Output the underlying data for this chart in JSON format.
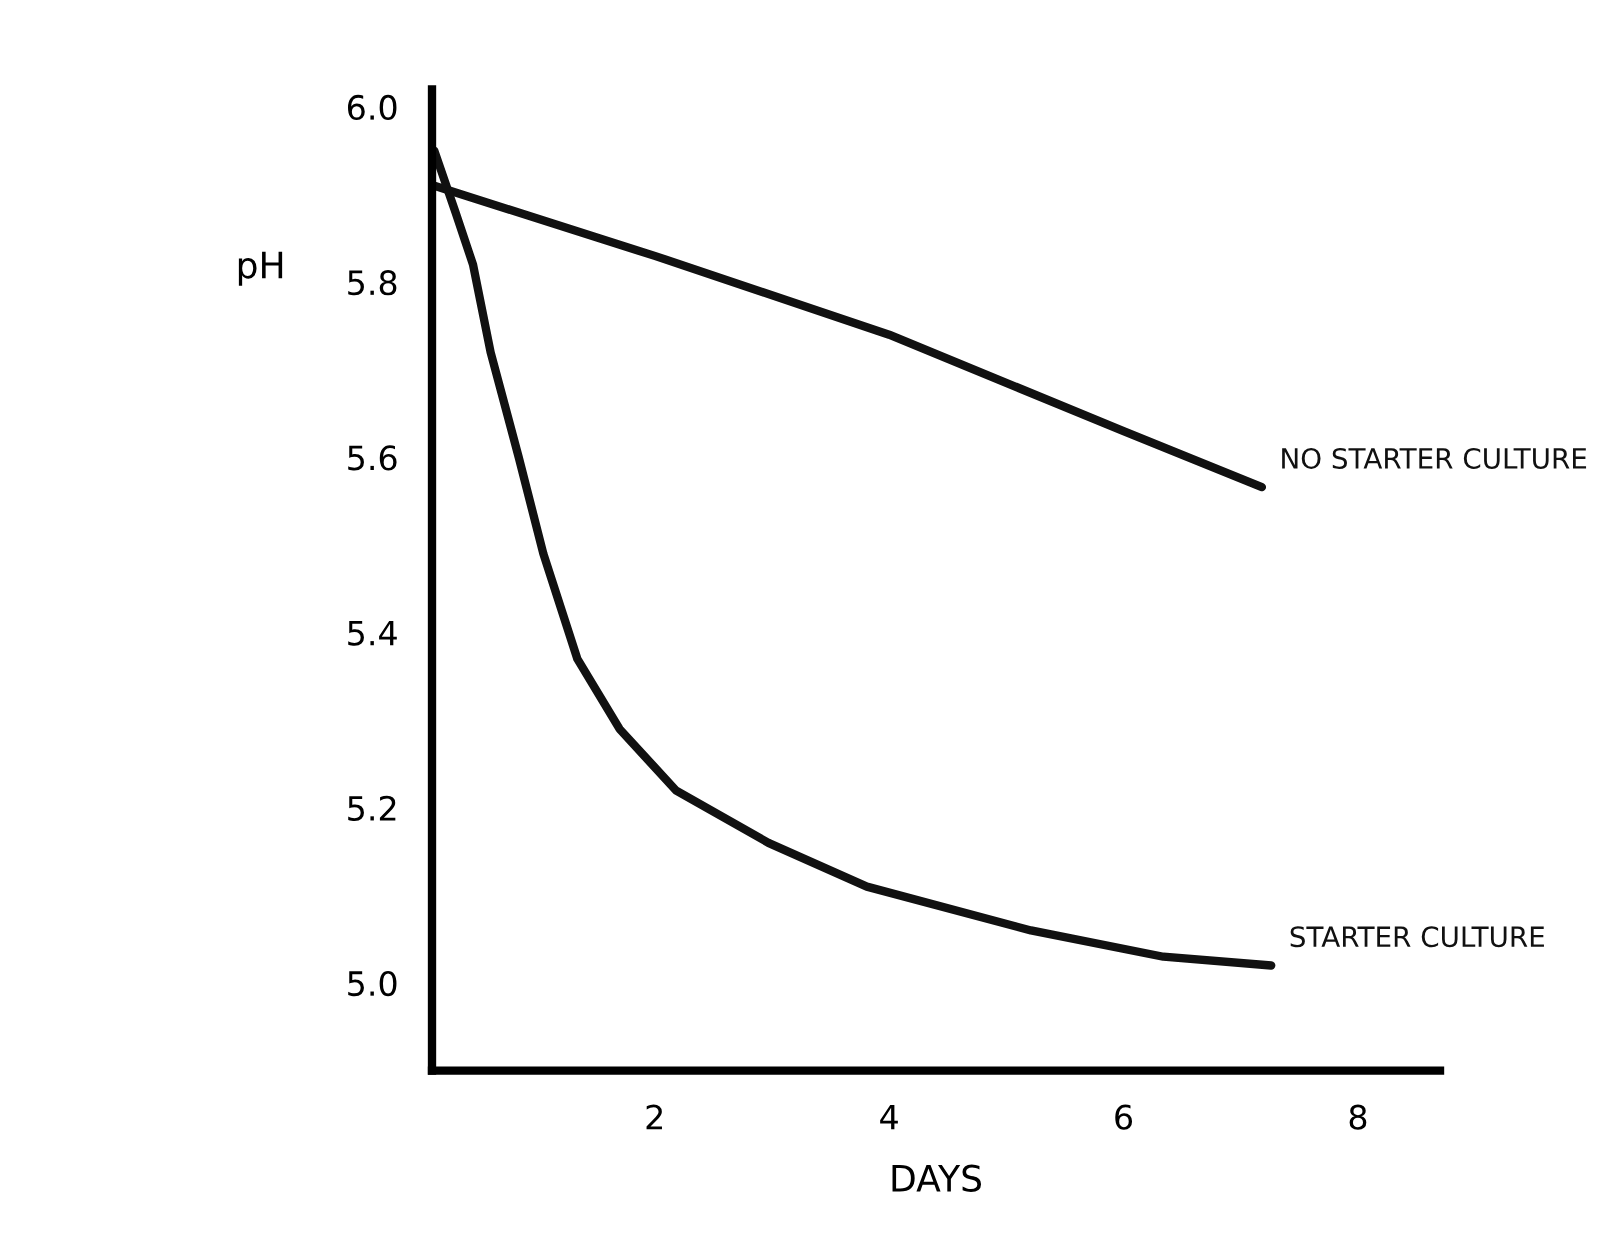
{
  "chart_data": {
    "type": "line",
    "xlabel": "DAYS",
    "ylabel": "pH",
    "series": [
      {
        "name": "NO STARTER CULTURE",
        "color": "#111111",
        "x": [
          0.12,
          2.0,
          4.0,
          6.0,
          7.18
        ],
        "values": [
          5.91,
          5.83,
          5.74,
          5.63,
          5.566
        ]
      },
      {
        "name": "STARTER CULTURE",
        "color": "#111111",
        "x": [
          0.12,
          0.3,
          0.45,
          0.6,
          0.84,
          1.05,
          1.34,
          1.7,
          2.18,
          2.97,
          3.81,
          5.21,
          6.34,
          7.26
        ],
        "values": [
          5.95,
          5.88,
          5.82,
          5.72,
          5.6,
          5.49,
          5.37,
          5.29,
          5.22,
          5.16,
          5.11,
          5.06,
          5.03,
          5.02
        ]
      }
    ],
    "xlim": [
      0.1,
      8.7
    ],
    "ylim": [
      4.9,
      6.02
    ],
    "xticks": [
      2,
      4,
      6,
      8
    ],
    "yticks": [
      {
        "value": 5.0,
        "label": "5.0"
      },
      {
        "value": 5.2,
        "label": "5.2"
      },
      {
        "value": 5.4,
        "label": "5.4"
      },
      {
        "value": 5.6,
        "label": "5.6"
      },
      {
        "value": 5.8,
        "label": "5.8"
      },
      {
        "value": 6.0,
        "label": "6.0"
      }
    ],
    "grid": false,
    "legend": false,
    "marker": "none",
    "line_style": "solid"
  }
}
